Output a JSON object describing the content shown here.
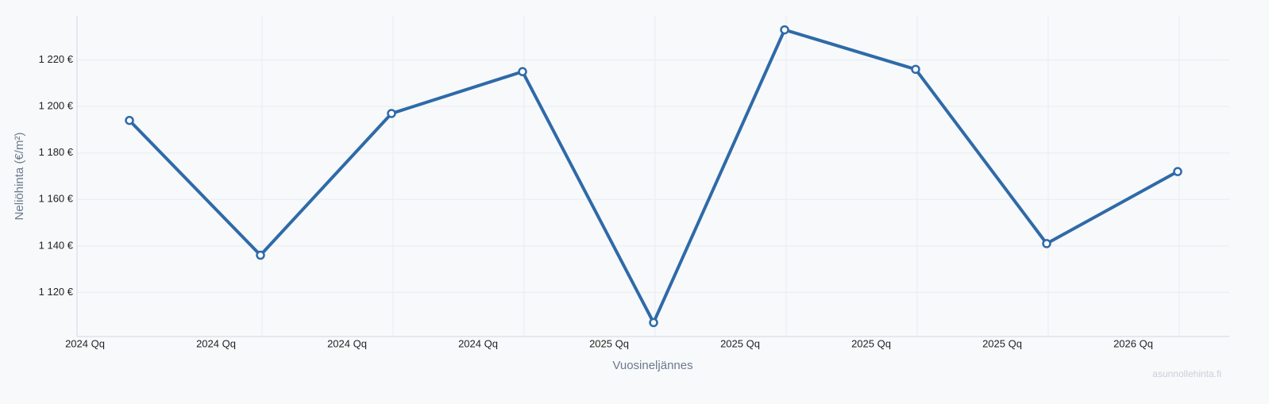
{
  "chart_data": {
    "type": "line",
    "x_label": "Vuosineljännes",
    "y_label": "Neliöhinta (€/m²)",
    "watermark": "asunnollehinta.fi",
    "categories": [
      "2024 Qq",
      "2024 Qq",
      "2024 Qq",
      "2024 Qq",
      "2025 Qq",
      "2025 Qq",
      "2025 Qq",
      "2025 Qq",
      "2026 Qq"
    ],
    "values": [
      1194,
      1136,
      1197,
      1215,
      1107,
      1233,
      1216,
      1141,
      1172
    ],
    "color": "#2f6aa8",
    "ylim": [
      1101,
      1239
    ],
    "yticks": [
      {
        "value": 1120,
        "label": "1 120 €"
      },
      {
        "value": 1140,
        "label": "1 140 €"
      },
      {
        "value": 1160,
        "label": "1 160 €"
      },
      {
        "value": 1180,
        "label": "1 180 €"
      },
      {
        "value": 1200,
        "label": "1 200 €"
      },
      {
        "value": 1220,
        "label": "1 220 €"
      }
    ],
    "grid": true
  }
}
